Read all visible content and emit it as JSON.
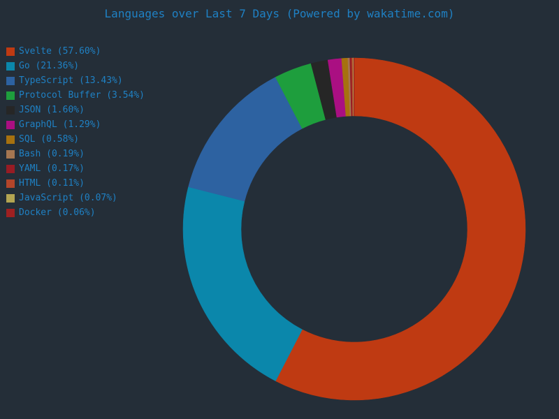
{
  "chart_data": {
    "type": "pie",
    "title": "Languages over Last 7 Days (Powered by wakatime.com)",
    "legend": "left",
    "slices": [
      {
        "label": "Svelte (57.60%)",
        "name": "Svelte",
        "value": 57.6,
        "color": "#bf3a12"
      },
      {
        "label": "Go (21.36%)",
        "name": "Go",
        "value": 21.36,
        "color": "#0b87ab"
      },
      {
        "label": "TypeScript (13.43%)",
        "name": "TypeScript",
        "value": 13.43,
        "color": "#2d62a1"
      },
      {
        "label": "Protocol Buffer (3.54%)",
        "name": "Protocol Buffer",
        "value": 3.54,
        "color": "#1e9e3d"
      },
      {
        "label": "JSON (1.60%)",
        "name": "JSON",
        "value": 1.6,
        "color": "#262626"
      },
      {
        "label": "GraphQL (1.29%)",
        "name": "GraphQL",
        "value": 1.29,
        "color": "#aa0f82"
      },
      {
        "label": "SQL (0.58%)",
        "name": "SQL",
        "value": 0.58,
        "color": "#a6710f"
      },
      {
        "label": "Bash (0.19%)",
        "name": "Bash",
        "value": 0.19,
        "color": "#a57651"
      },
      {
        "label": "YAML (0.17%)",
        "name": "YAML",
        "value": 0.17,
        "color": "#971c24"
      },
      {
        "label": "HTML (0.11%)",
        "name": "HTML",
        "value": 0.11,
        "color": "#b4452a"
      },
      {
        "label": "JavaScript (0.07%)",
        "name": "JavaScript",
        "value": 0.07,
        "color": "#b3a552"
      },
      {
        "label": "Docker (0.06%)",
        "name": "Docker",
        "value": 0.06,
        "color": "#9e2021"
      }
    ]
  }
}
